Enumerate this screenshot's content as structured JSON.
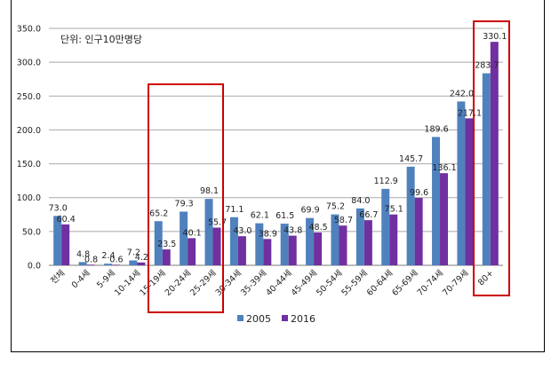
{
  "chart_data": {
    "type": "bar",
    "title": "",
    "annotation": "단위: 인구10만명당",
    "xlabel": "",
    "ylabel": "",
    "ylim": [
      0,
      350
    ],
    "yticks": [
      "0.0",
      "50.0",
      "100.0",
      "150.0",
      "200.0",
      "250.0",
      "300.0",
      "350.0"
    ],
    "grid": true,
    "legend_position": "bottom",
    "categories": [
      "전체",
      "0-4세",
      "5-9세",
      "10-14세",
      "15-19세",
      "20-24세",
      "25-29세",
      "30-34세",
      "35-39세",
      "40-44세",
      "45-49세",
      "50-54세",
      "55-59세",
      "60-64세",
      "65-69세",
      "70-74세",
      "70-79세",
      "80+"
    ],
    "series": [
      {
        "name": "2005",
        "color": "#4f81bd",
        "values": [
          73.0,
          4.8,
          2.4,
          7.2,
          65.2,
          79.3,
          98.1,
          71.1,
          62.1,
          61.5,
          69.9,
          75.2,
          84.0,
          112.9,
          145.7,
          189.6,
          242.0,
          283.7
        ]
      },
      {
        "name": "2016",
        "color": "#7030a0",
        "values": [
          60.4,
          0.8,
          0.6,
          4.2,
          23.5,
          40.1,
          55.7,
          43.0,
          38.9,
          43.8,
          48.5,
          58.7,
          66.7,
          75.1,
          99.6,
          136.1,
          217.1,
          330.1
        ]
      }
    ],
    "highlight_color": "#cc0000",
    "highlighted_groups": [
      [
        "15-19세",
        "20-24세",
        "25-29세"
      ],
      [
        "80+"
      ]
    ]
  }
}
